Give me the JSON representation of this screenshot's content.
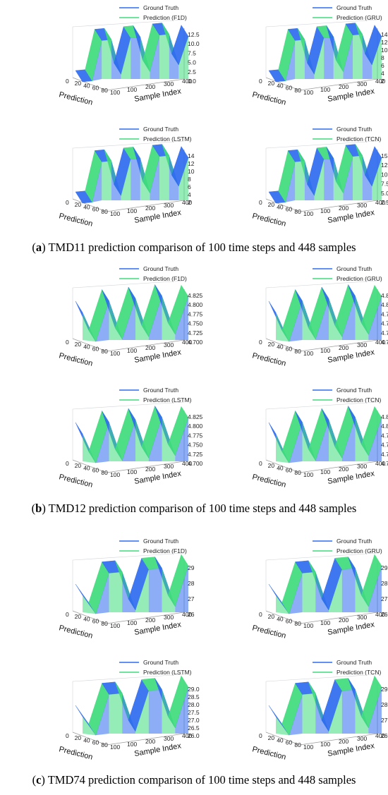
{
  "labels": {
    "ground_truth": "Ground Truth",
    "x_axis": "Prediction",
    "y_axis": "Sample Index",
    "x_ticks": [
      "0",
      "20",
      "40",
      "60",
      "80",
      "100"
    ],
    "y_ticks": [
      "100",
      "200",
      "300",
      "400"
    ]
  },
  "colors": {
    "truth": "#2f6bf0",
    "prediction": "#3fdc7c",
    "grid": "#cfd3d8"
  },
  "panels": [
    {
      "caption_letter": "a",
      "caption_text": " TMD11 prediction comparison of 100 time steps and 448 samples",
      "chart_data": [
        {
          "type": "surface3d",
          "model": "F1D",
          "legend": [
            "Ground Truth",
            "Prediction (F1D)"
          ],
          "xlim": [
            0,
            100
          ],
          "ylim": [
            0,
            448
          ],
          "zticks": [
            "12.5",
            "10.0",
            "7.5",
            "5.0",
            "2.5",
            "0.0"
          ],
          "profile": [
            4,
            4,
            14,
            14,
            5,
            14,
            14,
            5,
            14,
            14,
            6,
            13
          ]
        },
        {
          "type": "surface3d",
          "model": "GRU",
          "legend": [
            "Ground Truth",
            "Prediction (GRU)"
          ],
          "xlim": [
            0,
            100
          ],
          "ylim": [
            0,
            448
          ],
          "zticks": [
            "14",
            "12",
            "10",
            "8",
            "6",
            "4",
            "2"
          ],
          "profile": [
            4,
            4,
            14,
            14,
            5,
            14,
            14,
            5,
            14,
            14,
            6,
            13
          ]
        },
        {
          "type": "surface3d",
          "model": "LSTM",
          "legend": [
            "Ground Truth",
            "Prediction (LSTM)"
          ],
          "xlim": [
            0,
            100
          ],
          "ylim": [
            0,
            448
          ],
          "zticks": [
            "14",
            "12",
            "10",
            "8",
            "6",
            "4",
            "2"
          ],
          "profile": [
            4,
            4,
            14,
            14,
            5,
            14,
            14,
            5,
            14,
            14,
            6,
            13
          ]
        },
        {
          "type": "surface3d",
          "model": "TCN",
          "legend": [
            "Ground Truth",
            "Prediction (TCN)"
          ],
          "xlim": [
            0,
            100
          ],
          "ylim": [
            0,
            448
          ],
          "zticks": [
            "15.0",
            "12.5",
            "10.0",
            "7.5",
            "5.0",
            "2.5"
          ],
          "profile": [
            4,
            4,
            14,
            14,
            5,
            14,
            14,
            5,
            14,
            14,
            6,
            13
          ]
        }
      ]
    },
    {
      "caption_letter": "b",
      "caption_text": " TMD12 prediction comparison of 100 time steps and 448 samples",
      "chart_data": [
        {
          "type": "surface3d",
          "model": "F1D",
          "legend": [
            "Ground Truth",
            "Prediction (F1D)"
          ],
          "xlim": [
            0,
            100
          ],
          "ylim": [
            0,
            448
          ],
          "zticks": [
            "4.825",
            "4.800",
            "4.775",
            "4.750",
            "4.725",
            "4.700"
          ],
          "profile": [
            4.8,
            4.7,
            4.83,
            4.7,
            4.83,
            4.7,
            4.83,
            4.7,
            4.82
          ]
        },
        {
          "type": "surface3d",
          "model": "GRU",
          "legend": [
            "Ground Truth",
            "Prediction (GRU)"
          ],
          "xlim": [
            0,
            100
          ],
          "ylim": [
            0,
            448
          ],
          "zticks": [
            "4.825",
            "4.800",
            "4.775",
            "4.750",
            "4.725",
            "4.700"
          ],
          "profile": [
            4.8,
            4.7,
            4.83,
            4.7,
            4.83,
            4.7,
            4.83,
            4.7,
            4.82
          ]
        },
        {
          "type": "surface3d",
          "model": "LSTM",
          "legend": [
            "Ground Truth",
            "Prediction (LSTM)"
          ],
          "xlim": [
            0,
            100
          ],
          "ylim": [
            0,
            448
          ],
          "zticks": [
            "4.825",
            "4.800",
            "4.775",
            "4.750",
            "4.725",
            "4.700"
          ],
          "profile": [
            4.8,
            4.7,
            4.83,
            4.7,
            4.83,
            4.7,
            4.83,
            4.7,
            4.82
          ]
        },
        {
          "type": "surface3d",
          "model": "TCN",
          "legend": [
            "Ground Truth",
            "Prediction (TCN)"
          ],
          "xlim": [
            0,
            100
          ],
          "ylim": [
            0,
            448
          ],
          "zticks": [
            "4.825",
            "4.800",
            "4.775",
            "4.750",
            "4.725",
            "4.700"
          ],
          "profile": [
            4.8,
            4.7,
            4.83,
            4.7,
            4.83,
            4.7,
            4.83,
            4.7,
            4.82
          ]
        }
      ]
    },
    {
      "caption_letter": "c",
      "caption_text": " TMD74 prediction comparison of 100 time steps and 448 samples",
      "chart_data": [
        {
          "type": "surface3d",
          "model": "F1D",
          "legend": [
            "Ground Truth",
            "Prediction (F1D)"
          ],
          "xlim": [
            0,
            100
          ],
          "ylim": [
            0,
            448
          ],
          "zticks": [
            "29",
            "28",
            "27",
            "26"
          ],
          "profile": [
            27.5,
            26,
            29,
            29,
            26,
            29,
            29,
            26,
            29
          ]
        },
        {
          "type": "surface3d",
          "model": "GRU",
          "legend": [
            "Ground Truth",
            "Prediction (GRU)"
          ],
          "xlim": [
            0,
            100
          ],
          "ylim": [
            0,
            448
          ],
          "zticks": [
            "29",
            "28",
            "27",
            "26"
          ],
          "profile": [
            27.5,
            26,
            29,
            29,
            26,
            29,
            29,
            26,
            29
          ]
        },
        {
          "type": "surface3d",
          "model": "LSTM",
          "legend": [
            "Ground Truth",
            "Prediction (LSTM)"
          ],
          "xlim": [
            0,
            100
          ],
          "ylim": [
            0,
            448
          ],
          "zticks": [
            "29.0",
            "28.5",
            "28.0",
            "27.5",
            "27.0",
            "26.5",
            "26.0"
          ],
          "profile": [
            27.5,
            26,
            29,
            29,
            26,
            29,
            29,
            26,
            29
          ]
        },
        {
          "type": "surface3d",
          "model": "TCN",
          "legend": [
            "Ground Truth",
            "Prediction (TCN)"
          ],
          "xlim": [
            0,
            100
          ],
          "ylim": [
            0,
            448
          ],
          "zticks": [
            "29",
            "28",
            "27",
            "26"
          ],
          "profile": [
            27.5,
            26,
            29,
            29,
            26,
            29,
            29,
            26,
            29
          ]
        }
      ]
    }
  ]
}
